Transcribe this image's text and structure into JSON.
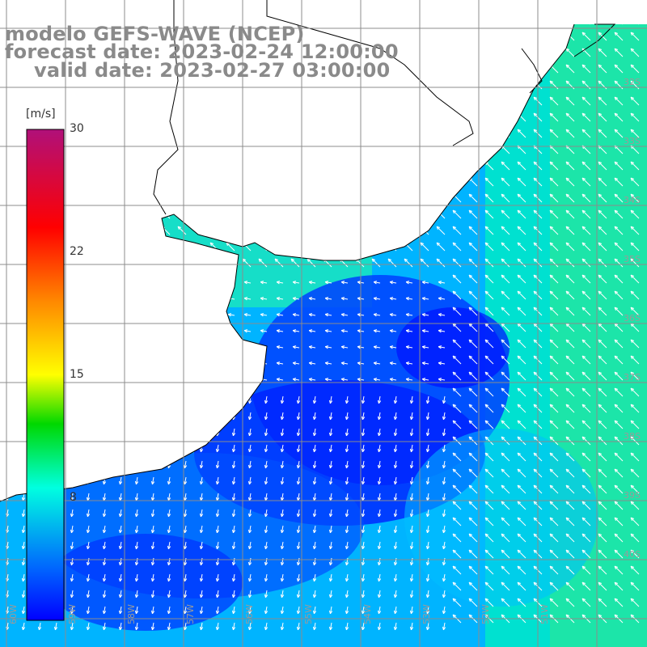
{
  "title": {
    "line1": "modelo GEFS-WAVE (NCEP)",
    "line2": "forecast date: 2023-02-24 12:00:00",
    "line3": "valid date: 2023-02-27 03:00:00"
  },
  "colorbar": {
    "unit": "[m/s]",
    "min": 0,
    "max": 30,
    "ticks": [
      {
        "value": 30,
        "label": "30"
      },
      {
        "value": 22,
        "label": "22"
      },
      {
        "value": 15,
        "label": "15"
      },
      {
        "value": 8,
        "label": "8"
      }
    ],
    "colors": [
      "#0000ff",
      "#0050ff",
      "#00c8ff",
      "#00ffd0",
      "#00e000",
      "#66e600",
      "#ffff00",
      "#ff9900",
      "#ff3300",
      "#ff0000",
      "#d00060",
      "#b0107a"
    ]
  },
  "lat_labels": [
    "32S",
    "33S",
    "34S",
    "35S",
    "36S",
    "37S",
    "38S",
    "39S",
    "40S"
  ],
  "lon_labels": [
    "60W",
    "59W",
    "58W",
    "57W",
    "56W",
    "55W",
    "54W",
    "53W",
    "52W",
    "51W"
  ],
  "colors": {
    "land": "#ffffff",
    "coast": "#000000",
    "grid": "#8c8c8c",
    "arrow": "#ffffff",
    "text": "#8a8a8a"
  }
}
